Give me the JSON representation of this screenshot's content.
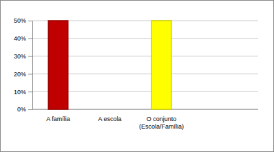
{
  "chart_data": {
    "type": "bar",
    "categories": [
      "A família",
      "A escola",
      "O conjunto (Escola/Família)"
    ],
    "values": [
      50,
      0,
      50
    ],
    "colors": [
      "#c00000",
      "#00a04b",
      "#ffff00"
    ],
    "ylim": [
      0,
      50
    ],
    "yticks": [
      {
        "value": 0,
        "label": "0%"
      },
      {
        "value": 10,
        "label": "10%"
      },
      {
        "value": 20,
        "label": "20%"
      },
      {
        "value": 30,
        "label": "30%"
      },
      {
        "value": 40,
        "label": "40%"
      },
      {
        "value": 50,
        "label": "50%"
      }
    ],
    "grid": true
  }
}
